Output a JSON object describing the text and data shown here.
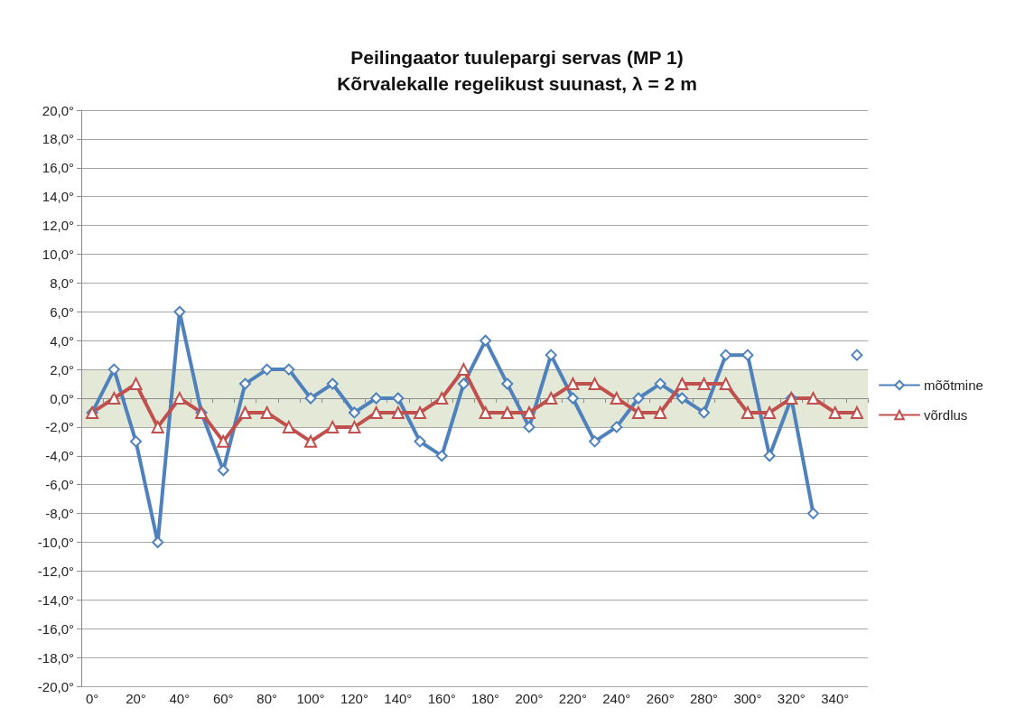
{
  "chart_data": {
    "type": "line",
    "title": "Peilingaator tuulepargi servas (MP 1)",
    "subtitle": "Kõrvalekalle regelikust suunast, λ = 2 m",
    "categories": [
      "0°",
      null,
      "20°",
      null,
      "40°",
      null,
      "60°",
      null,
      "80°",
      null,
      "100°",
      null,
      "120°",
      null,
      "140°",
      null,
      "160°",
      null,
      "180°",
      null,
      "200°",
      null,
      "220°",
      null,
      "240°",
      null,
      "260°",
      null,
      "280°",
      null,
      "300°",
      null,
      "320°",
      null,
      "340°",
      null
    ],
    "series": [
      {
        "name": "mõõtmine",
        "color": "#4f81bd",
        "marker": "diamond",
        "values": [
          -1,
          2,
          -3,
          -10,
          6,
          -1,
          -5,
          1,
          2,
          2,
          0,
          1,
          -1,
          0,
          0,
          -3,
          -4,
          1,
          4,
          1,
          -2,
          3,
          0,
          -3,
          -2,
          0,
          1,
          0,
          -1,
          3,
          3,
          -4,
          0,
          -8,
          null,
          3
        ]
      },
      {
        "name": "võrdlus",
        "color": "#c0504d",
        "marker": "triangle",
        "values": [
          -1,
          0,
          1,
          -2,
          0,
          -1,
          -3,
          -1,
          -1,
          -2,
          -3,
          -2,
          -2,
          -1,
          -1,
          -1,
          0,
          2,
          -1,
          -1,
          -1,
          0,
          1,
          1,
          0,
          -1,
          -1,
          1,
          1,
          1,
          -1,
          -1,
          0,
          0,
          -1,
          -1
        ]
      }
    ],
    "ylim": [
      -20,
      20
    ],
    "yticks": [
      {
        "value": -20,
        "label": "-20,0°"
      },
      {
        "value": -18,
        "label": "-18,0°"
      },
      {
        "value": -16,
        "label": "-16,0°"
      },
      {
        "value": -14,
        "label": "-14,0°"
      },
      {
        "value": -12,
        "label": "-12,0°"
      },
      {
        "value": -10,
        "label": "-10,0°"
      },
      {
        "value": -8,
        "label": "-8,0°"
      },
      {
        "value": -6,
        "label": "-6,0°"
      },
      {
        "value": -4,
        "label": "-4,0°"
      },
      {
        "value": -2,
        "label": "-2,0°"
      },
      {
        "value": 0,
        "label": "0,0°"
      },
      {
        "value": 2,
        "label": "2,0°"
      },
      {
        "value": 4,
        "label": "4,0°"
      },
      {
        "value": 6,
        "label": "6,0°"
      },
      {
        "value": 8,
        "label": "8,0°"
      },
      {
        "value": 10,
        "label": "10,0°"
      },
      {
        "value": 12,
        "label": "12,0°"
      },
      {
        "value": 14,
        "label": "14,0°"
      },
      {
        "value": 16,
        "label": "16,0°"
      },
      {
        "value": 18,
        "label": "18,0°"
      },
      {
        "value": 20,
        "label": "20,0°"
      }
    ],
    "bands": [
      {
        "axis": "y",
        "from": -2,
        "to": 2,
        "color": "#e4e8d6"
      }
    ],
    "grid": "y",
    "legend": "right"
  }
}
